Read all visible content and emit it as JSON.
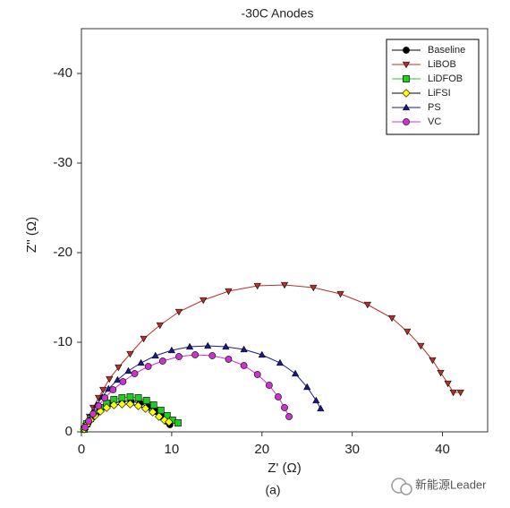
{
  "chart_data": {
    "type": "line",
    "title": "-30C Anodes",
    "x_label": "Z' (Ω)",
    "y_label": "Z'' (Ω)",
    "caption": "(a)",
    "watermark": "新能源Leader",
    "xlim": [
      0,
      45
    ],
    "ylim": [
      0,
      -45
    ],
    "xticks": [
      0,
      10,
      20,
      30,
      40
    ],
    "yticks": [
      0,
      -10,
      -20,
      -30,
      -40
    ],
    "legend": "upper right",
    "series": [
      {
        "name": "Baseline",
        "color": "#000000",
        "marker": "circle",
        "x": [
          0.3,
          0.7,
          1.2,
          1.8,
          2.6,
          3.5,
          4.5,
          5.5,
          6.5,
          7.4,
          8.2,
          8.9,
          9.4,
          9.8
        ],
        "values": [
          -0.3,
          -0.9,
          -1.6,
          -2.2,
          -2.8,
          -3.2,
          -3.4,
          -3.4,
          -3.2,
          -2.8,
          -2.3,
          -1.7,
          -1.2,
          -0.8
        ]
      },
      {
        "name": "LiBOB",
        "color": "#b8302c",
        "marker": "triangle-down",
        "x": [
          0.5,
          0.9,
          1.3,
          1.9,
          2.4,
          3.1,
          4.1,
          5.4,
          6.9,
          8.7,
          10.8,
          13.5,
          16.3,
          19.5,
          22.5,
          25.7,
          28.7,
          31.7,
          34.4,
          36.1,
          37.6,
          38.9,
          39.8,
          40.6,
          41.2,
          42.0
        ],
        "values": [
          -0.7,
          -1.7,
          -2.7,
          -3.8,
          -4.7,
          -5.9,
          -7.2,
          -8.7,
          -10.4,
          -11.9,
          -13.4,
          -14.7,
          -15.7,
          -16.3,
          -16.4,
          -16.1,
          -15.4,
          -14.2,
          -12.7,
          -11.2,
          -9.6,
          -8.0,
          -6.6,
          -5.4,
          -4.4,
          -4.4
        ]
      },
      {
        "name": "LiDFOB",
        "color": "#22cc22",
        "marker": "square",
        "x": [
          0.3,
          0.6,
          1.0,
          1.5,
          2.1,
          2.8,
          3.6,
          4.5,
          5.4,
          6.3,
          7.2,
          8.0,
          8.8,
          9.5,
          10.1,
          10.7
        ],
        "values": [
          -0.3,
          -0.9,
          -1.5,
          -2.1,
          -2.7,
          -3.2,
          -3.6,
          -3.8,
          -3.9,
          -3.8,
          -3.5,
          -3.0,
          -2.4,
          -1.8,
          -1.3,
          -1.0
        ]
      },
      {
        "name": "LiFSI",
        "color": "#ffff00",
        "marker": "diamond",
        "x": [
          0.3,
          0.6,
          1.0,
          1.5,
          2.1,
          2.8,
          3.6,
          4.5,
          5.4,
          6.3,
          7.1,
          7.9,
          8.6,
          9.2,
          9.7
        ],
        "values": [
          -0.3,
          -0.8,
          -1.3,
          -1.8,
          -2.3,
          -2.7,
          -3.0,
          -3.1,
          -3.1,
          -2.9,
          -2.6,
          -2.2,
          -1.7,
          -1.3,
          -1.1
        ]
      },
      {
        "name": "PS",
        "color": "#1a1a8c",
        "marker": "triangle-up",
        "x": [
          0.4,
          0.8,
          1.2,
          1.7,
          2.3,
          3.0,
          4.0,
          5.2,
          6.6,
          8.2,
          10.0,
          12.0,
          14.0,
          16.0,
          18.0,
          20.0,
          22.0,
          23.7,
          25.0,
          26.0,
          26.5
        ],
        "values": [
          -0.5,
          -1.3,
          -2.1,
          -3.0,
          -3.9,
          -4.8,
          -5.8,
          -6.8,
          -7.7,
          -8.5,
          -9.1,
          -9.5,
          -9.6,
          -9.5,
          -9.2,
          -8.6,
          -7.7,
          -6.5,
          -5.0,
          -3.5,
          -2.6
        ]
      },
      {
        "name": "VC",
        "color": "#cc33cc",
        "marker": "circle",
        "x": [
          0.4,
          0.8,
          1.3,
          1.9,
          2.6,
          3.5,
          4.6,
          5.9,
          7.4,
          9.0,
          10.8,
          12.6,
          14.5,
          16.3,
          18.0,
          19.5,
          20.8,
          21.8,
          22.5,
          23.0
        ],
        "values": [
          -0.5,
          -1.2,
          -2.0,
          -2.9,
          -3.8,
          -4.7,
          -5.6,
          -6.5,
          -7.3,
          -7.9,
          -8.4,
          -8.6,
          -8.5,
          -8.1,
          -7.4,
          -6.4,
          -5.2,
          -3.9,
          -2.7,
          -1.7
        ]
      }
    ]
  }
}
